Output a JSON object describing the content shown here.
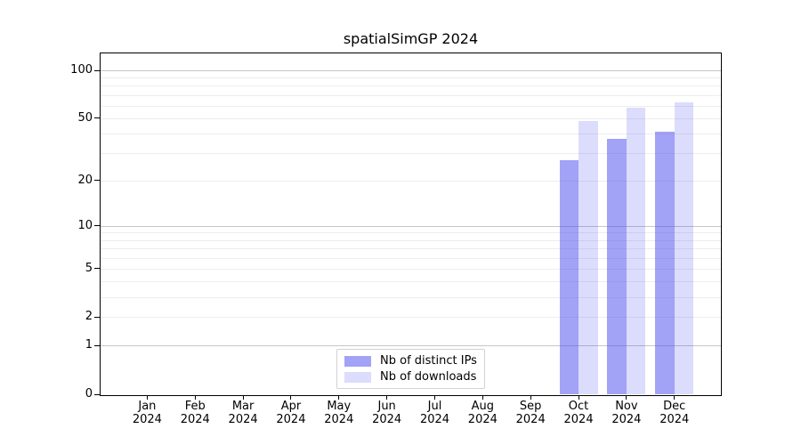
{
  "chart_data": {
    "type": "bar",
    "title": "spatialSimGP 2024",
    "xlabel": "",
    "ylabel": "",
    "categories": [
      "Jan 2024",
      "Feb 2024",
      "Mar 2024",
      "Apr 2024",
      "May 2024",
      "Jun 2024",
      "Jul 2024",
      "Aug 2024",
      "Sep 2024",
      "Oct 2024",
      "Nov 2024",
      "Dec 2024"
    ],
    "x_tick_top_lines": [
      "Jan",
      "Feb",
      "Mar",
      "Apr",
      "May",
      "Jun",
      "Jul",
      "Aug",
      "Sep",
      "Oct",
      "Nov",
      "Dec"
    ],
    "x_tick_bottom_line": "2024",
    "series": [
      {
        "name": "Nb of distinct IPs",
        "values": [
          0,
          0,
          0,
          0,
          0,
          0,
          0,
          0,
          0,
          27,
          37,
          41
        ],
        "color": "rgba(70,70,238,0.5)",
        "approx_hex_on_white": "#a8a8f7"
      },
      {
        "name": "Nb of downloads",
        "values": [
          0,
          0,
          0,
          0,
          0,
          0,
          0,
          0,
          0,
          48,
          58,
          63
        ],
        "color": "rgba(70,70,238,0.19)",
        "approx_hex_on_white": "#dcdcfb"
      }
    ],
    "y_scale": "log1p",
    "y_ticks": [
      0,
      1,
      2,
      5,
      10,
      20,
      50,
      100
    ],
    "ylim": [
      0,
      128
    ],
    "grid": {
      "major_values": [
        1,
        10,
        100
      ],
      "minor_values": [
        2,
        3,
        4,
        5,
        6,
        7,
        8,
        9,
        20,
        30,
        40,
        50,
        60,
        70,
        80,
        90
      ],
      "major_color": "#c6c6c6",
      "minor_color": "#ededed"
    },
    "legend_position": "lower center inside"
  },
  "legend": {
    "items": [
      {
        "label": "Nb of distinct IPs",
        "color": "rgba(70,70,238,0.5)"
      },
      {
        "label": "Nb of downloads",
        "color": "rgba(70,70,238,0.19)"
      }
    ]
  }
}
